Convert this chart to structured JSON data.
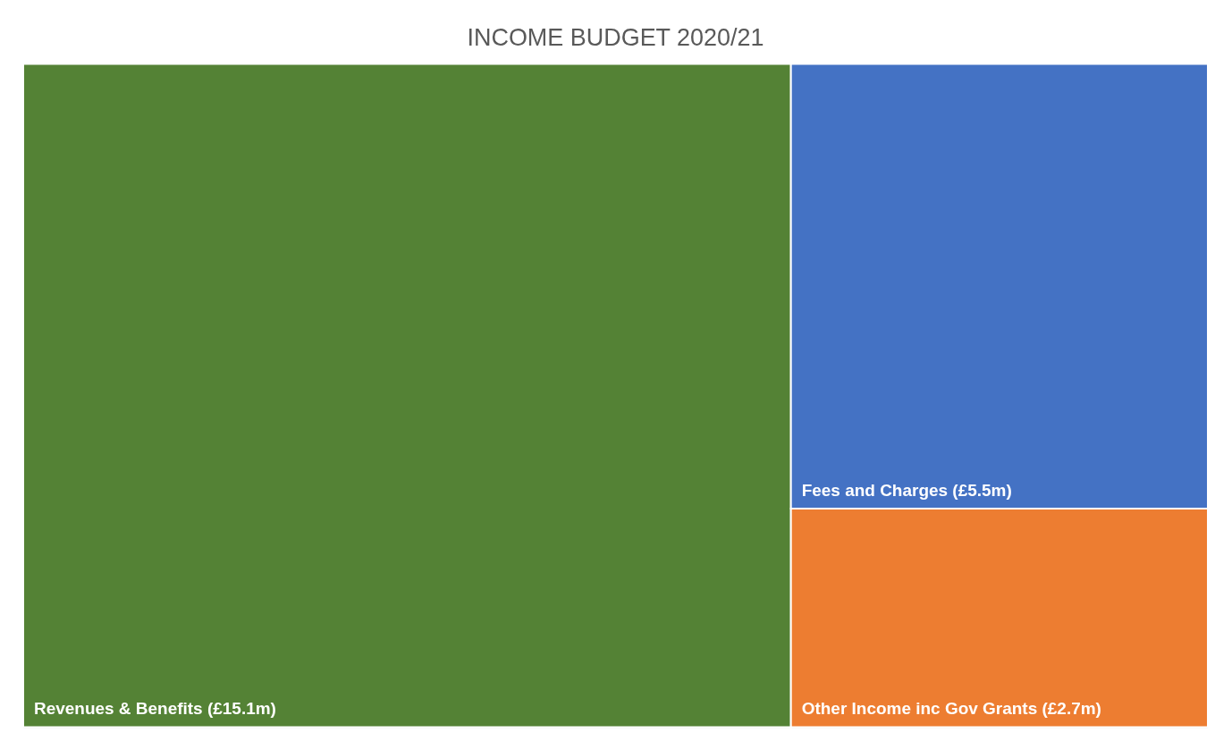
{
  "chart_data": {
    "type": "other",
    "title": "INCOME BUDGET 2020/21",
    "categories": [
      "Revenues & Benefits",
      "Fees and Charges",
      "Other Income inc Gov Grants"
    ],
    "values": [
      15.1,
      5.5,
      2.7
    ],
    "value_labels": [
      "(£15.1m)",
      "(£5.5m)",
      "(£2.7m)"
    ],
    "colors": [
      "#548235",
      "#4472c4",
      "#ed7d31"
    ]
  }
}
